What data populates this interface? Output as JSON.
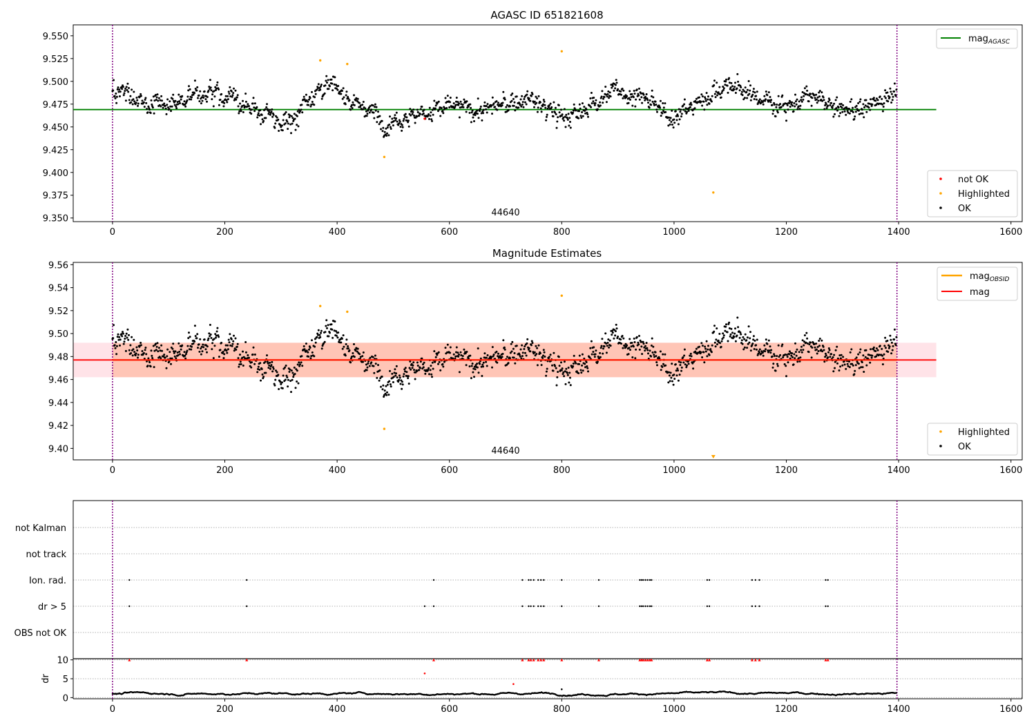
{
  "colors": {
    "ok": "#000000",
    "highlighted": "#ffa500",
    "not_ok": "#ff0000",
    "mag_agasc": "#008000",
    "mag_obsid": "#ffa500",
    "mag": "#ff0000",
    "band": "#ffc0cb",
    "obs_band": "#ffa07a",
    "boundary": "#800080",
    "grid": "#b0b0b0"
  },
  "chart_data": [
    {
      "type": "scatter",
      "title": "AGASC ID 651821608",
      "xlabel": "",
      "ylabel": "",
      "xlim": [
        -70,
        1620
      ],
      "ylim": [
        9.346,
        9.562
      ],
      "xticks": [
        "0",
        "200",
        "400",
        "600",
        "800",
        "1000",
        "1200",
        "1400",
        "1600"
      ],
      "yticks": [
        "9.350",
        "9.375",
        "9.400",
        "9.425",
        "9.450",
        "9.475",
        "9.500",
        "9.525",
        "9.550"
      ],
      "obsid_label": "44640",
      "obs_boundaries": [
        0,
        1397
      ],
      "lines": [
        {
          "name": "mag",
          "subscript": "AGASC",
          "y": 9.469,
          "x_range": [
            -70,
            1467
          ]
        }
      ],
      "legend_lines_position": "top-right",
      "legend_points_position": "bottom-right",
      "legend_points": [
        {
          "label": "not OK",
          "color_key": "not_ok"
        },
        {
          "label": "Highlighted",
          "color_key": "highlighted"
        },
        {
          "label": "OK",
          "color_key": "ok"
        }
      ],
      "series": [
        {
          "name": "OK",
          "description": "~1400 samples at 1 per time step, magnitude ≈ 9.44–9.515 varying slowly around 9.475"
        },
        {
          "name": "Highlighted",
          "x": [
            370,
            418,
            484,
            800,
            1070
          ],
          "y": [
            9.523,
            9.519,
            9.417,
            9.533,
            9.378
          ]
        },
        {
          "name": "not OK",
          "x": [
            556
          ],
          "y": [
            9.459
          ]
        }
      ]
    },
    {
      "type": "scatter",
      "title": "Magnitude Estimates",
      "xlabel": "",
      "ylabel": "",
      "xlim": [
        -70,
        1620
      ],
      "ylim": [
        9.39,
        9.562
      ],
      "xticks": [
        "0",
        "200",
        "400",
        "600",
        "800",
        "1000",
        "1200",
        "1400",
        "1600"
      ],
      "yticks": [
        "9.40",
        "9.42",
        "9.44",
        "9.46",
        "9.48",
        "9.50",
        "9.52",
        "9.54",
        "9.56"
      ],
      "obsid_label": "44640",
      "obs_boundaries": [
        0,
        1397
      ],
      "lines": [
        {
          "name": "mag",
          "subscript": "OBSID",
          "y": 9.477,
          "x_range": [
            0,
            1397
          ]
        },
        {
          "name": "mag",
          "subscript": "",
          "y": 9.477,
          "x_range": [
            -70,
            1467
          ]
        }
      ],
      "bands": [
        {
          "color_key": "band",
          "y_range": [
            9.462,
            9.492
          ],
          "x_range": [
            -70,
            1467
          ]
        },
        {
          "color_key": "obs_band",
          "y_range": [
            9.462,
            9.492
          ],
          "x_range": [
            0,
            1397
          ]
        }
      ],
      "legend_lines_position": "top-right",
      "legend_points_position": "bottom-right",
      "legend_points": [
        {
          "label": "Highlighted",
          "color_key": "highlighted"
        },
        {
          "label": "OK",
          "color_key": "ok"
        }
      ],
      "series": [
        {
          "name": "OK",
          "description": "same samples as top panel"
        },
        {
          "name": "Highlighted",
          "x": [
            370,
            418,
            484,
            800
          ],
          "y": [
            9.524,
            9.519,
            9.417,
            9.533
          ]
        },
        {
          "name": "Highlighted (below axis)",
          "x": [
            1070
          ],
          "y": [
            9.392
          ],
          "marker": "triangle-down"
        }
      ]
    },
    {
      "type": "scatter",
      "title": "",
      "xlabel": "",
      "ylabel": "",
      "xlim": [
        -70,
        1620
      ],
      "categories": [
        "not Kalman",
        "not track",
        "Ion. rad.",
        "dr > 5",
        "OBS not OK"
      ],
      "obs_boundaries": [
        0,
        1397
      ],
      "series": [
        {
          "name": "Ion. rad.",
          "x": [
            30,
            239,
            572,
            730,
            741,
            745,
            750,
            758,
            763,
            768,
            800,
            866,
            939,
            942,
            945,
            949,
            953,
            957,
            960,
            1059,
            1063,
            1139,
            1145,
            1152,
            1270,
            1274
          ]
        },
        {
          "name": "dr > 5",
          "x": [
            30,
            239,
            556,
            572,
            730,
            741,
            745,
            750,
            758,
            763,
            768,
            800,
            866,
            939,
            942,
            945,
            949,
            953,
            957,
            960,
            1059,
            1063,
            1139,
            1145,
            1152,
            1270,
            1274
          ]
        }
      ]
    },
    {
      "type": "scatter",
      "title": "",
      "xlabel": "",
      "ylabel": "dr",
      "xlim": [
        -70,
        1620
      ],
      "ylim": [
        -0.3,
        10.3
      ],
      "xticks": [
        "0",
        "200",
        "400",
        "600",
        "800",
        "1000",
        "1200",
        "1400",
        "1600"
      ],
      "yticks": [
        "0",
        "5",
        "10"
      ],
      "obs_boundaries": [
        0,
        1397
      ],
      "series": [
        {
          "name": "dr",
          "description": "~1400 samples at 1 per time step, dr ≈ 0.3–1.9 varying slowly"
        },
        {
          "name": "dr outliers",
          "x": [
            556,
            714,
            800
          ],
          "y": [
            6.4,
            3.6,
            2.2
          ]
        },
        {
          "name": "dr clipped at 10",
          "x": [
            30,
            239,
            572,
            730,
            741,
            745,
            750,
            758,
            763,
            768,
            800,
            866,
            939,
            942,
            945,
            949,
            953,
            957,
            960,
            1059,
            1063,
            1139,
            1145,
            1152,
            1270,
            1274
          ],
          "y": 10,
          "marker": "triangle-up"
        }
      ]
    }
  ]
}
